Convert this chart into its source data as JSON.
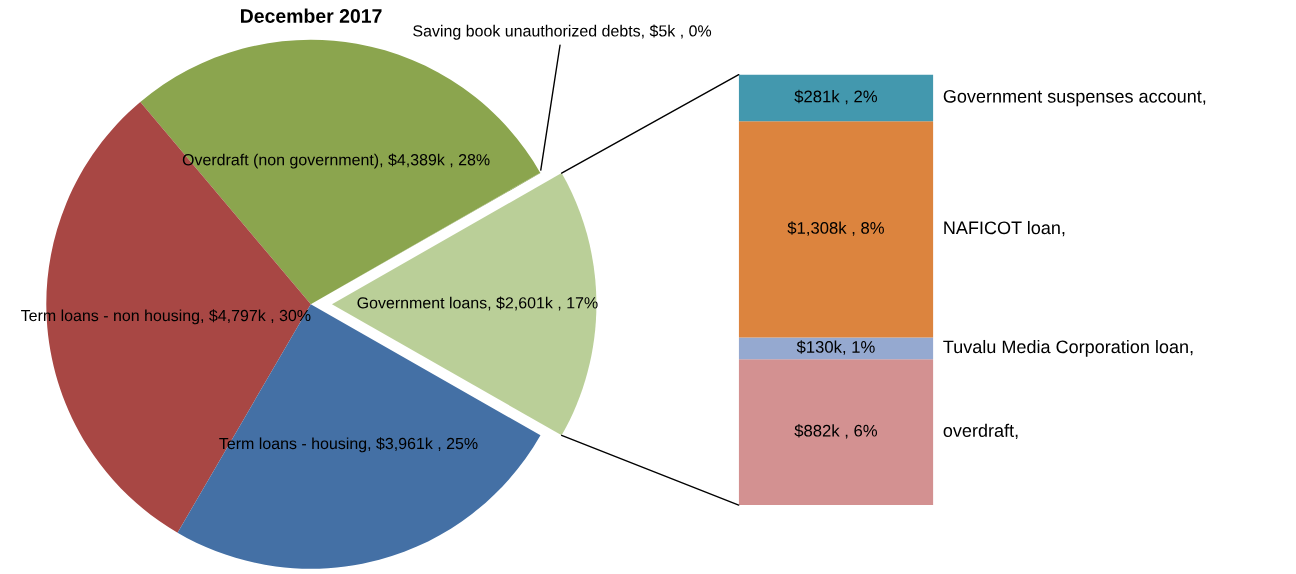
{
  "chart_data": [
    {
      "type": "pie",
      "title": "December 2017",
      "categories": [
        "Government loans",
        "Saving book unauthorized debts",
        "Overdraft (non government)",
        "Term loans - non housing",
        "Term loans - housing"
      ],
      "values": [
        2601000,
        5000,
        4389000,
        4797000,
        3961000
      ],
      "value_labels": [
        "$2,601k , 17%",
        "$5k , 0%",
        "$4,389k , 28%",
        "$4,797k , 30%",
        "$3,961k , 25%"
      ],
      "colors": [
        "#bacf98",
        "#7f9a45",
        "#8ba54e",
        "#a84744",
        "#4470a5"
      ]
    },
    {
      "type": "bar",
      "stacked": true,
      "categories": [
        null
      ],
      "series": [
        {
          "name": "overdraft,",
          "color": "#d39191",
          "values": [
            882000
          ],
          "value_labels": [
            "$882k , 6%"
          ]
        },
        {
          "name": "Tuvalu Media Corporation loan,",
          "color": "#95a9d0",
          "values": [
            130000
          ],
          "value_labels": [
            "$130k, 1%"
          ]
        },
        {
          "name": "NAFICOT loan,",
          "color": "#dc843e",
          "values": [
            1308000
          ],
          "value_labels": [
            "$1,308k , 8%"
          ]
        },
        {
          "name": "Government suspenses account,",
          "color": "#4398ae",
          "values": [
            281000
          ],
          "value_labels": [
            "$281k , 2%"
          ]
        }
      ]
    }
  ]
}
